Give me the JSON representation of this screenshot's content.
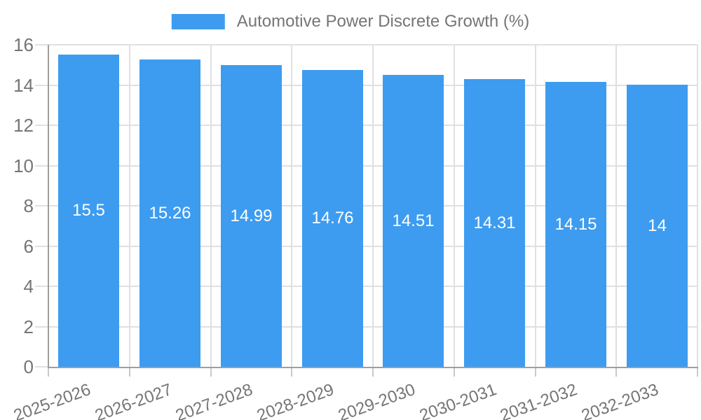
{
  "chart_data": {
    "type": "bar",
    "title": "Automotive Power Discrete Growth (%)",
    "categories": [
      "2025-2026",
      "2026-2027",
      "2027-2028",
      "2028-2029",
      "2029-2030",
      "2030-2031",
      "2031-2032",
      "2032-2033"
    ],
    "values": [
      15.5,
      15.26,
      14.99,
      14.76,
      14.51,
      14.31,
      14.15,
      14
    ],
    "xlabel": "",
    "ylabel": "",
    "ylim": [
      0,
      16
    ],
    "y_ticks": [
      0,
      2,
      4,
      6,
      8,
      10,
      12,
      14,
      16
    ],
    "grid": true,
    "legend_position": "top"
  },
  "colors": {
    "bar": "#3D9CF0",
    "grid": "#E0E0E0",
    "axis": "#9E9E9E",
    "tick": "#C9C9C9",
    "text": "#757575",
    "bar_label": "#FFFFFF"
  }
}
